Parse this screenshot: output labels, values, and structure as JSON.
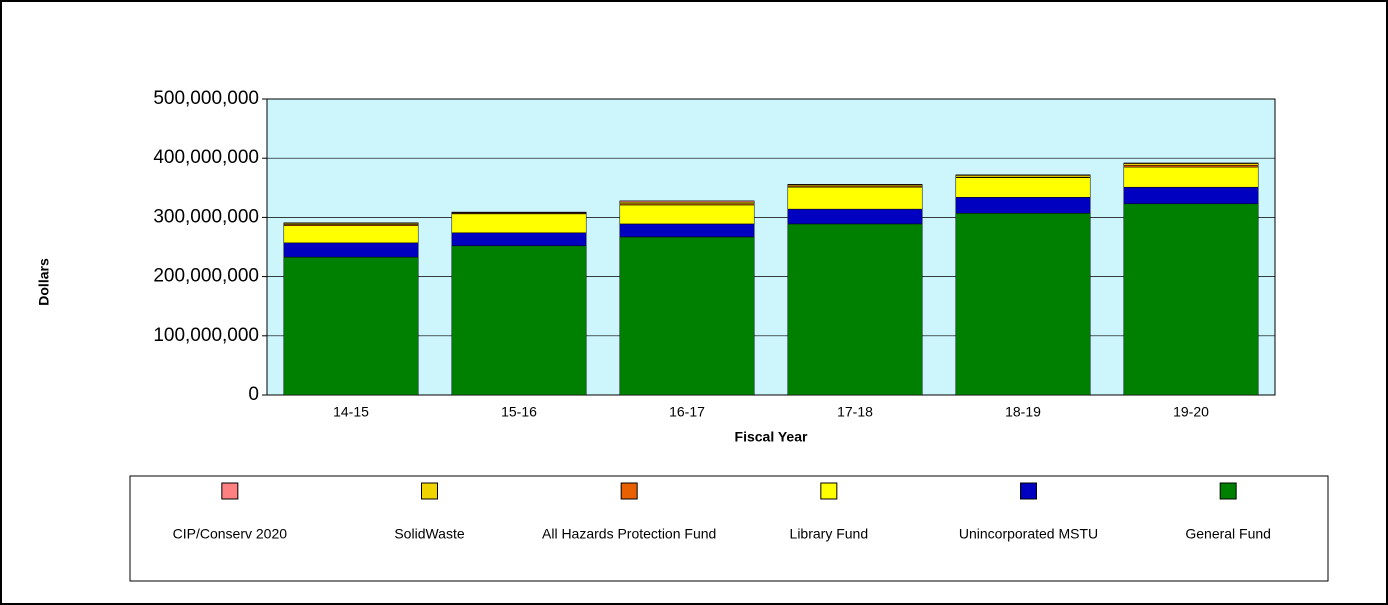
{
  "chart_data": {
    "type": "stacked_bar",
    "x_label": "Fiscal Year",
    "y_label": "Dollars",
    "categories": [
      "14-15",
      "15-16",
      "16-17",
      "17-18",
      "18-19",
      "19-20"
    ],
    "series": [
      {
        "name": "CIP/Conserv 2020",
        "color": "#ff8080",
        "values": [
          1000000,
          500000,
          2000000,
          1000000,
          1000000,
          1000000
        ]
      },
      {
        "name": "SolidWaste",
        "color": "#f0d400",
        "values": [
          2000000,
          1000000,
          3000000,
          2000000,
          3000000,
          3000000
        ]
      },
      {
        "name": "All Hazards Protection Fund",
        "color": "#e86000",
        "values": [
          2000000,
          1500000,
          2000000,
          2000000,
          1000000,
          3000000
        ]
      },
      {
        "name": "Library Fund",
        "color": "#ffff00",
        "values": [
          29000000,
          32000000,
          32000000,
          37000000,
          33000000,
          34000000
        ]
      },
      {
        "name": "Unincorporated MSTU",
        "color": "#0000c0",
        "values": [
          24000000,
          22000000,
          22000000,
          25000000,
          27000000,
          28000000
        ]
      },
      {
        "name": "General Fund",
        "color": "#008000",
        "values": [
          233000000,
          252000000,
          267000000,
          289000000,
          307000000,
          323000000
        ]
      }
    ],
    "ylim": [
      0,
      500000000
    ],
    "yticks": [
      0,
      {
        "value": 100000000,
        "label": "100,000,000"
      },
      {
        "value": 200000000,
        "label": "200,000,000"
      },
      {
        "value": 300000000,
        "label": "300,000,000"
      },
      {
        "value": 400000000,
        "label": "400,000,000"
      },
      {
        "value": 500000000,
        "label": "500,000,000"
      }
    ],
    "grid": true,
    "plot_background": "#ccf5fc"
  }
}
